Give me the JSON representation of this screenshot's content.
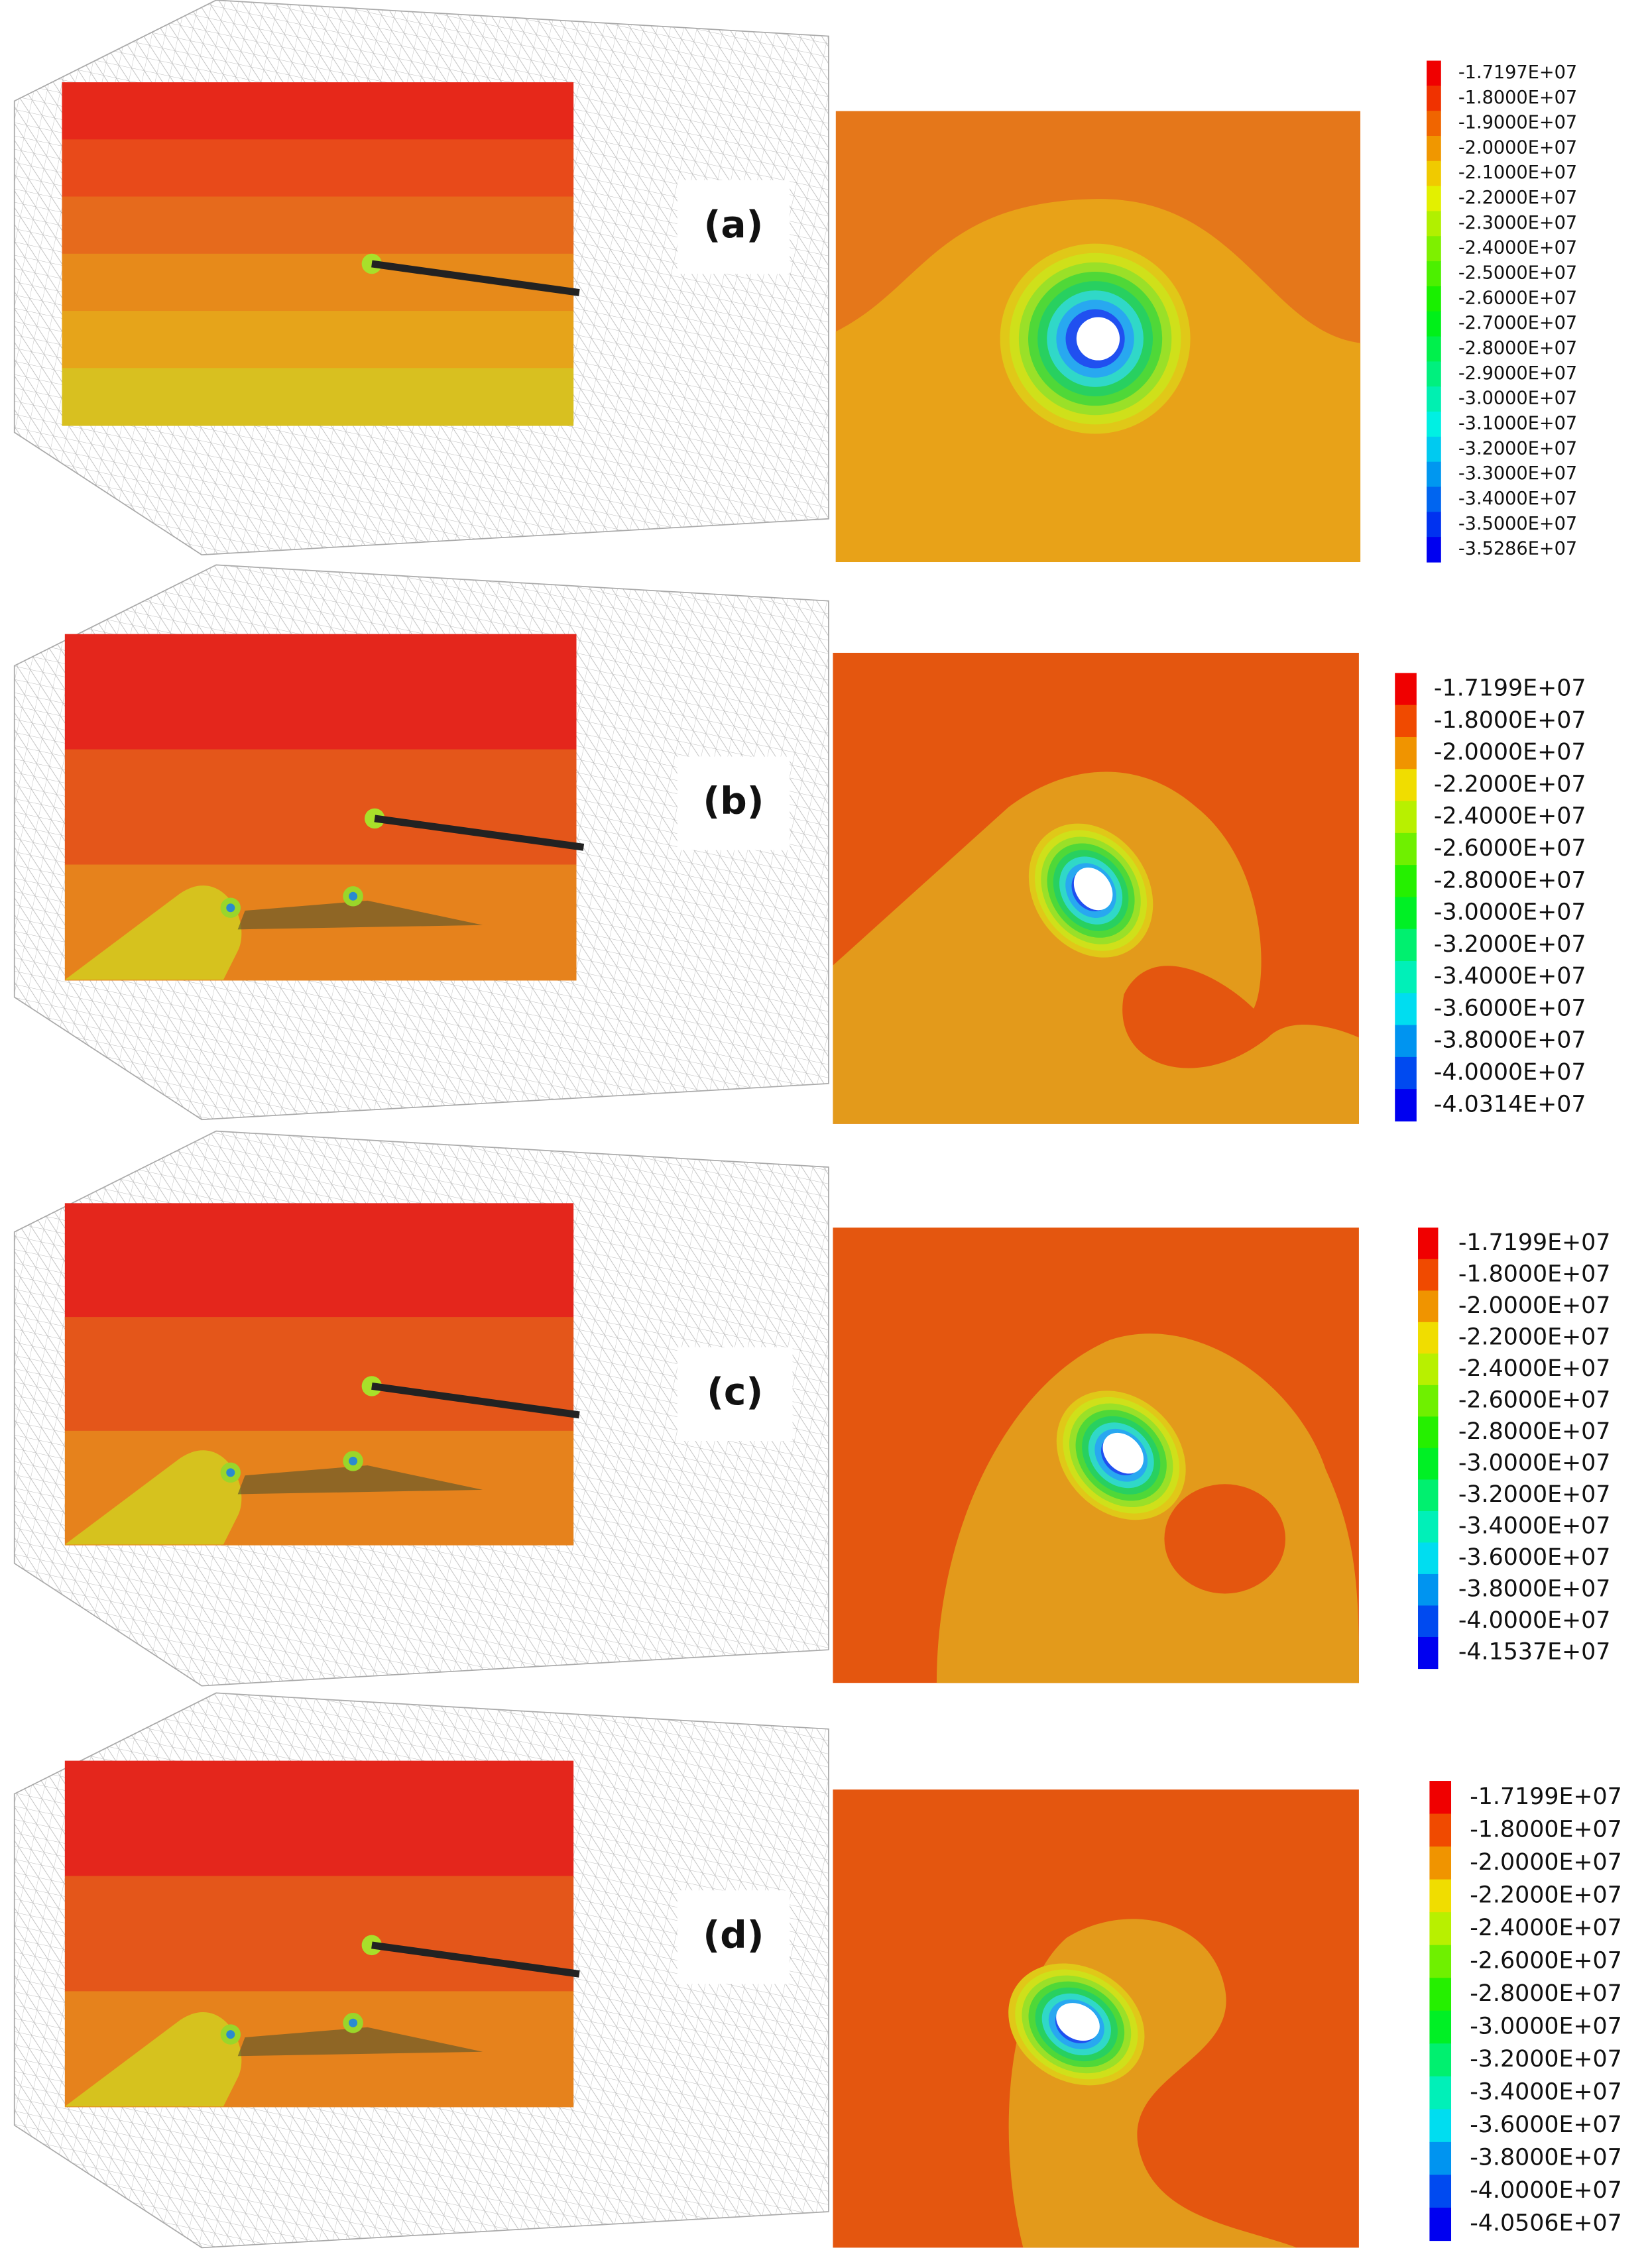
{
  "panels": [
    {
      "label": "(a)",
      "legend": [
        "-1.7197E+07",
        "-1.8000E+07",
        "-1.9000E+07",
        "-2.0000E+07",
        "-2.1000E+07",
        "-2.2000E+07",
        "-2.3000E+07",
        "-2.4000E+07",
        "-2.5000E+07",
        "-2.6000E+07",
        "-2.7000E+07",
        "-2.8000E+07",
        "-2.9000E+07",
        "-3.0000E+07",
        "-3.1000E+07",
        "-3.2000E+07",
        "-3.3000E+07",
        "-3.4000E+07",
        "-3.5000E+07",
        "-3.5286E+07"
      ]
    },
    {
      "label": "(b)",
      "legend": [
        "-1.7199E+07",
        "-1.8000E+07",
        "-2.0000E+07",
        "-2.2000E+07",
        "-2.4000E+07",
        "-2.6000E+07",
        "-2.8000E+07",
        "-3.0000E+07",
        "-3.2000E+07",
        "-3.4000E+07",
        "-3.6000E+07",
        "-3.8000E+07",
        "-4.0000E+07",
        "-4.0314E+07"
      ]
    },
    {
      "label": "(c)",
      "legend": [
        "-1.7199E+07",
        "-1.8000E+07",
        "-2.0000E+07",
        "-2.2000E+07",
        "-2.4000E+07",
        "-2.6000E+07",
        "-2.8000E+07",
        "-3.0000E+07",
        "-3.2000E+07",
        "-3.4000E+07",
        "-3.6000E+07",
        "-3.8000E+07",
        "-4.0000E+07",
        "-4.1537E+07"
      ]
    },
    {
      "label": "(d)",
      "legend": [
        "-1.7199E+07",
        "-1.8000E+07",
        "-2.0000E+07",
        "-2.2000E+07",
        "-2.4000E+07",
        "-2.6000E+07",
        "-2.8000E+07",
        "-3.0000E+07",
        "-3.2000E+07",
        "-3.4000E+07",
        "-3.6000E+07",
        "-3.8000E+07",
        "-4.0000E+07",
        "-4.0506E+07"
      ]
    }
  ]
}
